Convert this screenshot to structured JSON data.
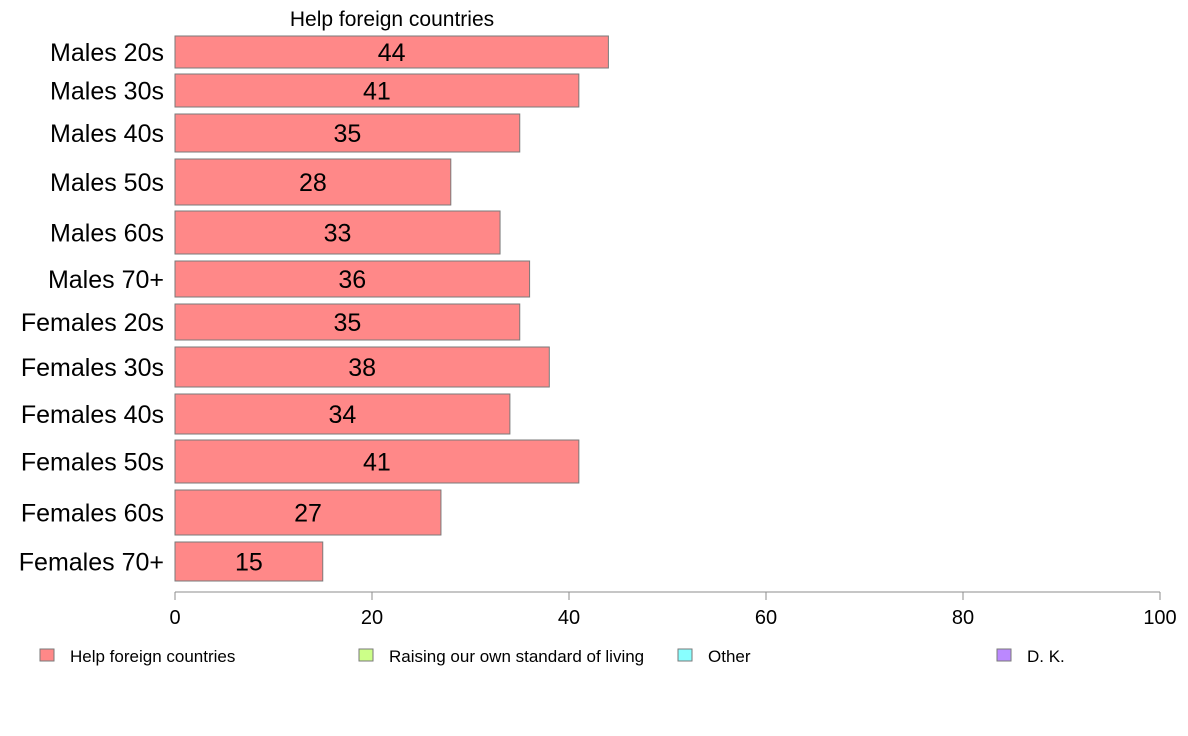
{
  "chart_data": {
    "type": "bar",
    "orientation": "horizontal",
    "title": "Help foreign countries",
    "categories": [
      "Males 20s",
      "Males 30s",
      "Males 40s",
      "Males 50s",
      "Males 60s",
      "Males 70+",
      "Females 20s",
      "Females 30s",
      "Females 40s",
      "Females 50s",
      "Females 60s",
      "Females 70+"
    ],
    "series": [
      {
        "name": "Help foreign countries",
        "color": "#ff8888",
        "values": [
          44,
          41,
          35,
          28,
          33,
          36,
          35,
          38,
          34,
          41,
          27,
          15
        ]
      }
    ],
    "xlim": [
      0,
      100
    ],
    "xticks": [
      "0",
      "20",
      "40",
      "60",
      "80",
      "100"
    ],
    "grid": false,
    "legend_position": "bottom",
    "legend": [
      {
        "label": "Help foreign countries",
        "color": "#ff8888"
      },
      {
        "label": "Raising our own standard of living",
        "color": "#ccff88"
      },
      {
        "label": "Other",
        "color": "#88ffff"
      },
      {
        "label": "D. K.",
        "color": "#bb88ff"
      }
    ]
  }
}
